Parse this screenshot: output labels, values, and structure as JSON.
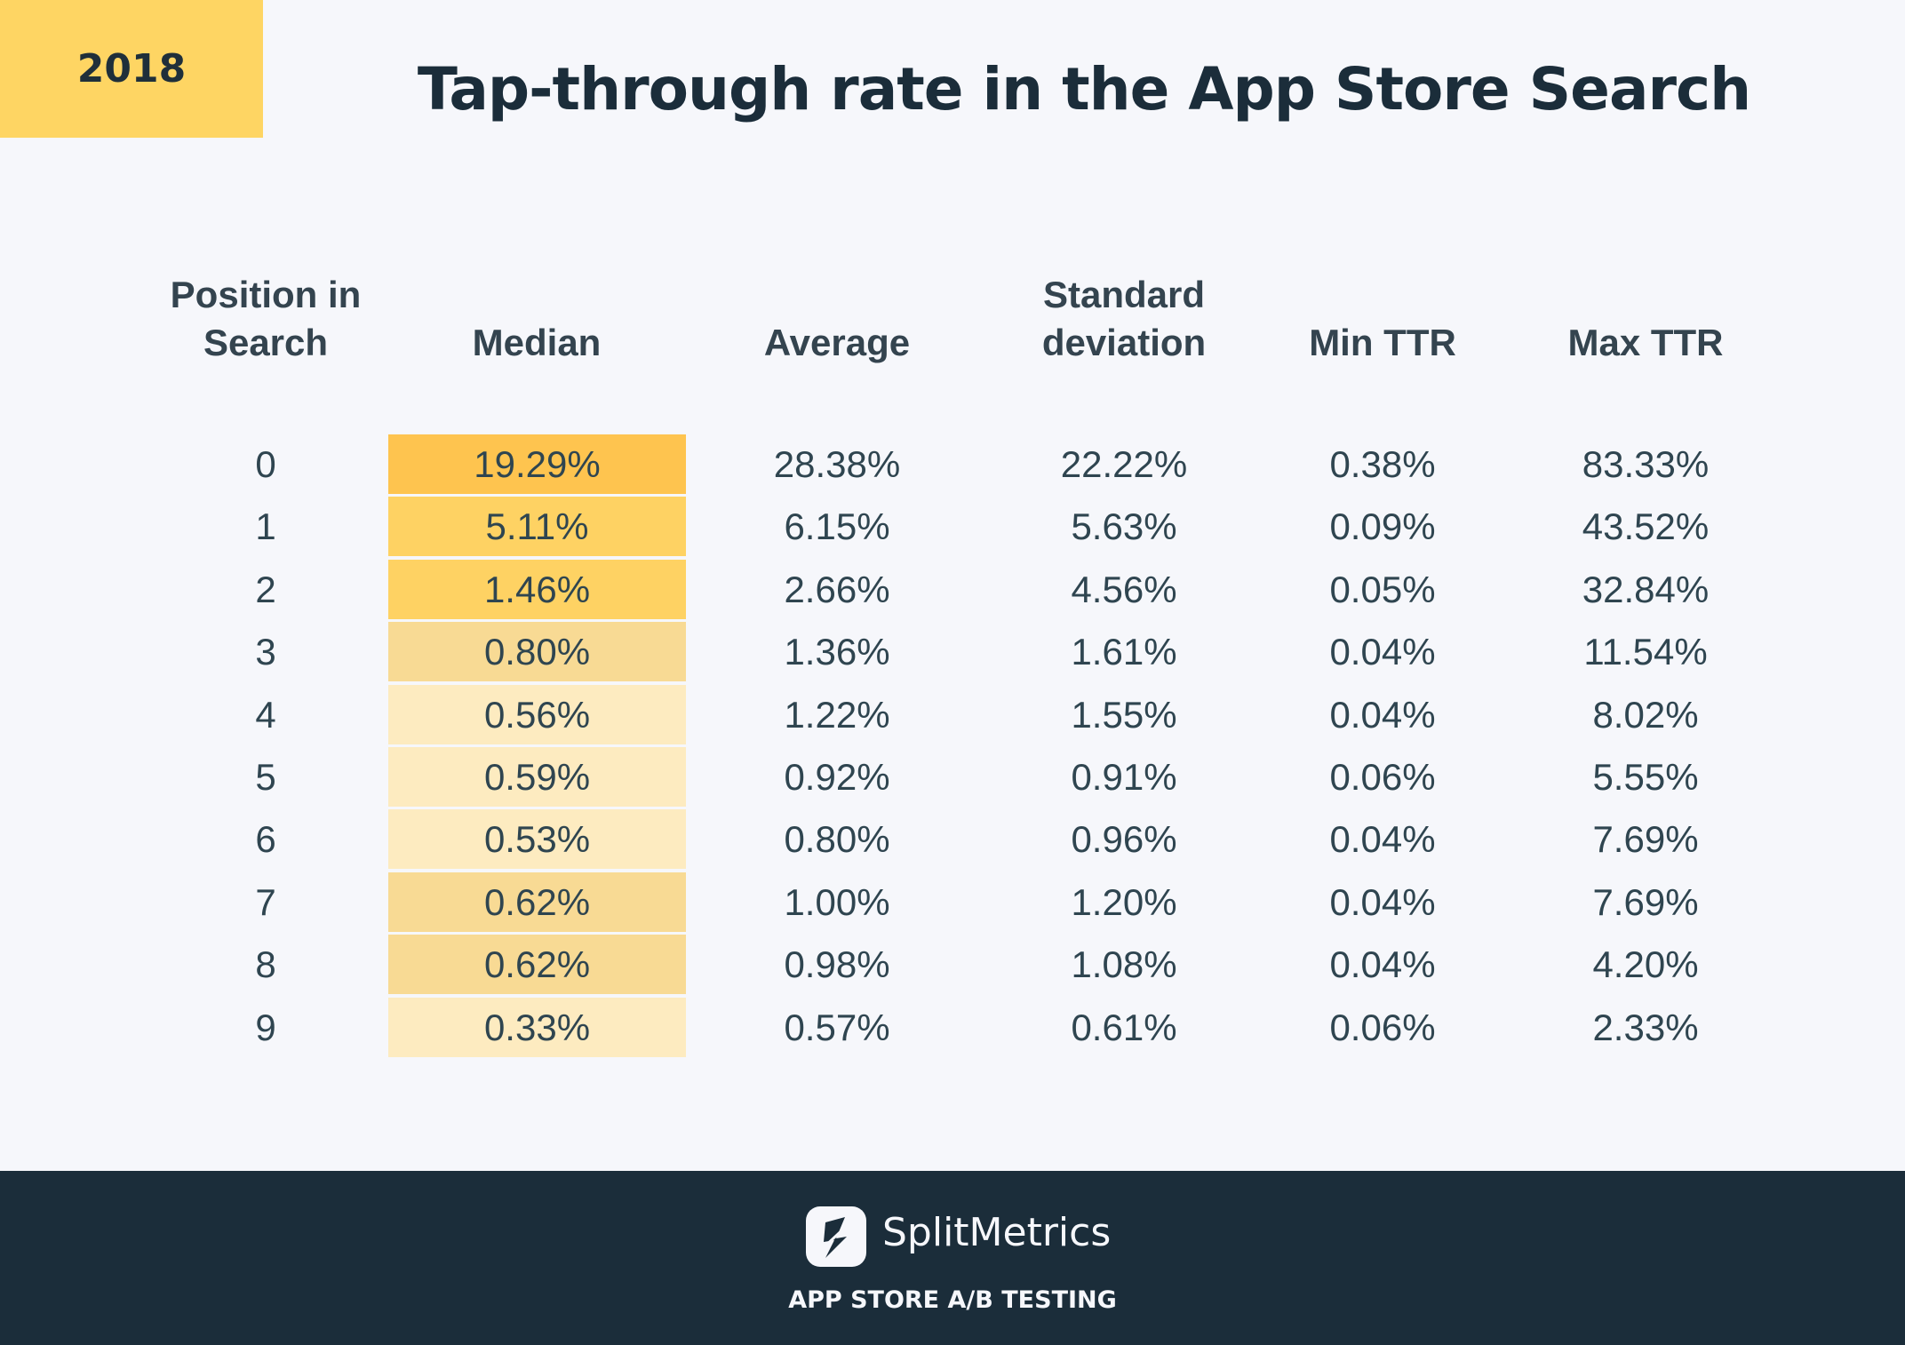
{
  "year": "2018",
  "title": "Tap-through rate in the App Store Search",
  "columns": [
    "Position in Search",
    "Median",
    "Average",
    "Standard deviation",
    "Min TTR",
    "Max TTR"
  ],
  "header_lines": {
    "position": [
      "Position in",
      "Search"
    ],
    "std": [
      "Standard",
      "deviation"
    ]
  },
  "rows": [
    {
      "position": "0",
      "median": "19.29%",
      "average": "28.38%",
      "std": "22.22%",
      "min": "0.38%",
      "max": "83.33%",
      "median_color": "#fec44f"
    },
    {
      "position": "1",
      "median": "5.11%",
      "average": "6.15%",
      "std": "5.63%",
      "min": "0.09%",
      "max": "43.52%",
      "median_color": "#fed263"
    },
    {
      "position": "2",
      "median": "1.46%",
      "average": "2.66%",
      "std": "4.56%",
      "min": "0.05%",
      "max": "32.84%",
      "median_color": "#fed263"
    },
    {
      "position": "3",
      "median": "0.80%",
      "average": "1.36%",
      "std": "1.61%",
      "min": "0.04%",
      "max": "11.54%",
      "median_color": "#f8da94"
    },
    {
      "position": "4",
      "median": "0.56%",
      "average": "1.22%",
      "std": "1.55%",
      "min": "0.04%",
      "max": "8.02%",
      "median_color": "#fdebc0"
    },
    {
      "position": "5",
      "median": "0.59%",
      "average": "0.92%",
      "std": "0.91%",
      "min": "0.06%",
      "max": "5.55%",
      "median_color": "#fdebc0"
    },
    {
      "position": "6",
      "median": "0.53%",
      "average": "0.80%",
      "std": "0.96%",
      "min": "0.04%",
      "max": "7.69%",
      "median_color": "#fdebc0"
    },
    {
      "position": "7",
      "median": "0.62%",
      "average": "1.00%",
      "std": "1.20%",
      "min": "0.04%",
      "max": "7.69%",
      "median_color": "#f8da94"
    },
    {
      "position": "8",
      "median": "0.62%",
      "average": "0.98%",
      "std": "1.08%",
      "min": "0.04%",
      "max": "4.20%",
      "median_color": "#f8da94"
    },
    {
      "position": "9",
      "median": "0.33%",
      "average": "0.57%",
      "std": "0.61%",
      "min": "0.06%",
      "max": "2.33%",
      "median_color": "#fdebc0"
    }
  ],
  "footer": {
    "brand": "SplitMetrics",
    "tagline": "APP STORE A/B TESTING",
    "logo_icon": "splitmetrics-logo-icon"
  },
  "colors": {
    "accent": "#fed563",
    "footer_bg": "#1b2d3a",
    "background": "#f6f7fb"
  }
}
